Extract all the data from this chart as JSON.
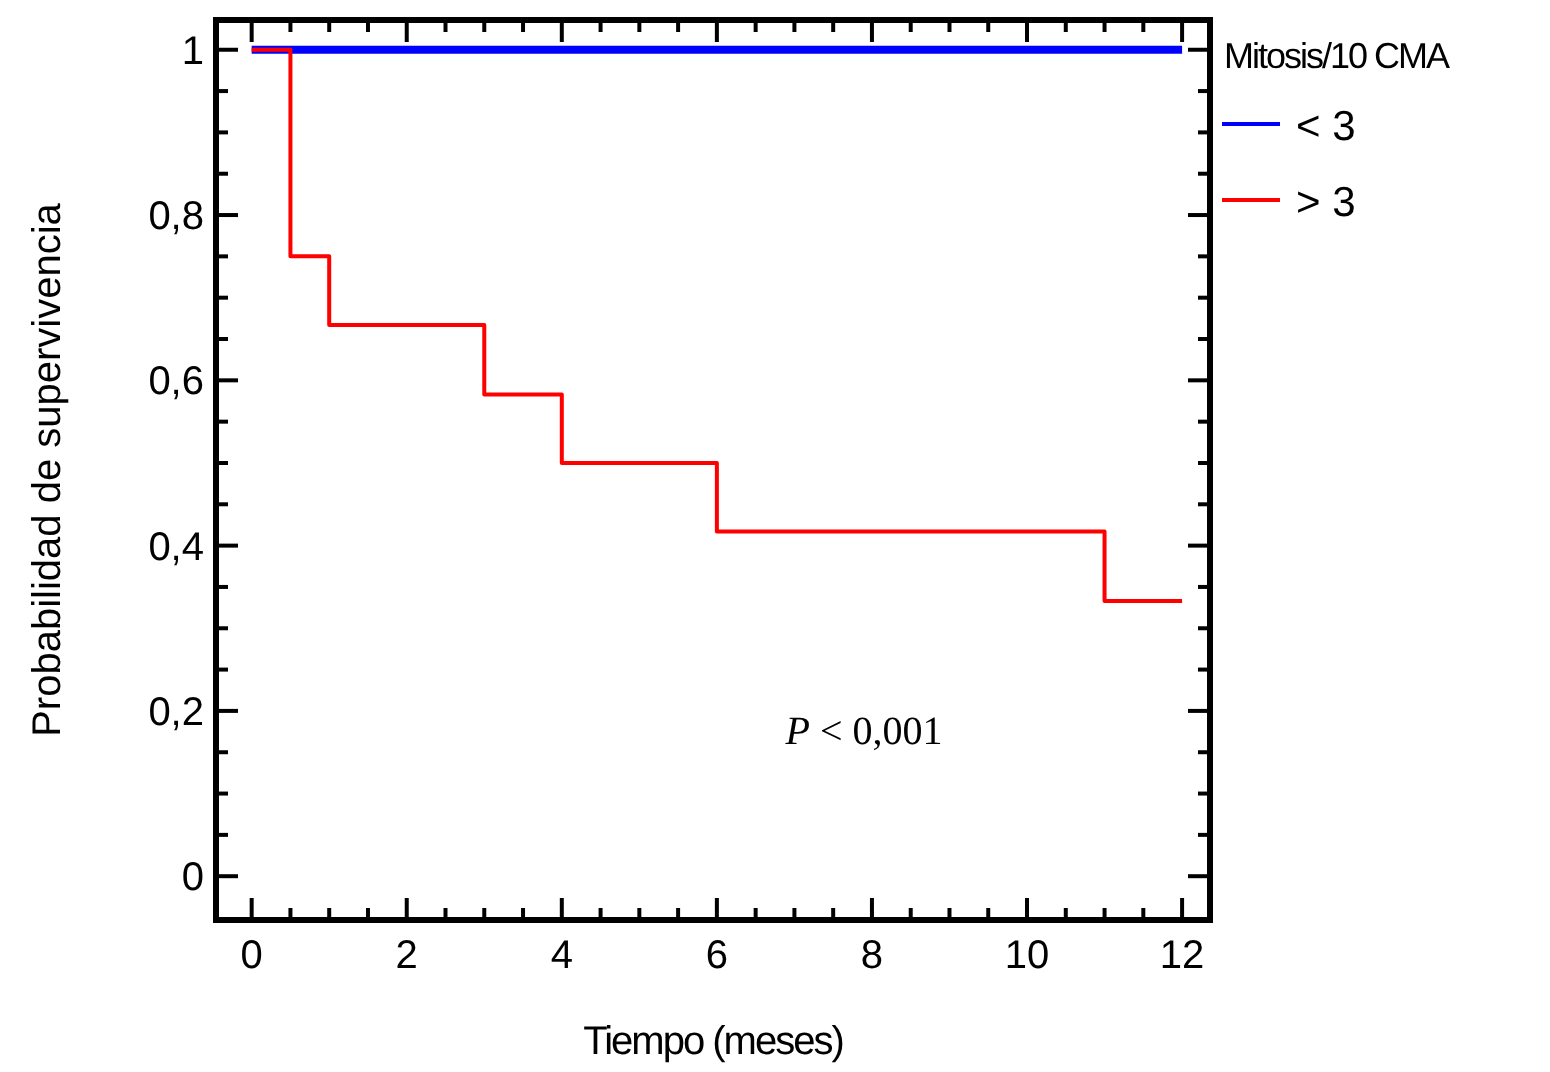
{
  "chart_data": {
    "type": "step",
    "xlabel": "Tiempo (meses)",
    "ylabel": "Probabilidad de supervivencia",
    "legend_title": "Mitosis/10 CMA",
    "legend": "right",
    "xlim": [
      -0.46,
      12.36
    ],
    "ylim": [
      -0.053,
      1.036
    ],
    "xticks": [
      0,
      {
        "value": 0.5,
        "label": null
      },
      {
        "value": 1,
        "label": null
      },
      {
        "value": 1.5,
        "label": null
      },
      2,
      {
        "value": 2.5,
        "label": null
      },
      {
        "value": 3,
        "label": null
      },
      {
        "value": 3.5,
        "label": null
      },
      4,
      {
        "value": 4.5,
        "label": null
      },
      {
        "value": 5,
        "label": null
      },
      {
        "value": 5.5,
        "label": null
      },
      6,
      {
        "value": 6.5,
        "label": null
      },
      {
        "value": 7,
        "label": null
      },
      {
        "value": 7.5,
        "label": null
      },
      8,
      {
        "value": 8.5,
        "label": null
      },
      {
        "value": 9,
        "label": null
      },
      {
        "value": 9.5,
        "label": null
      },
      10,
      {
        "value": 10.5,
        "label": null
      },
      {
        "value": 11,
        "label": null
      },
      {
        "value": 11.5,
        "label": null
      },
      12
    ],
    "yticks": [
      0,
      {
        "value": 0.05,
        "label": null
      },
      {
        "value": 0.1,
        "label": null
      },
      {
        "value": 0.15,
        "label": null
      },
      {
        "value": 0.2,
        "label": "0,2"
      },
      {
        "value": 0.25,
        "label": null
      },
      {
        "value": 0.3,
        "label": null
      },
      {
        "value": 0.35,
        "label": null
      },
      {
        "value": 0.4,
        "label": "0,4"
      },
      {
        "value": 0.45,
        "label": null
      },
      {
        "value": 0.5,
        "label": null
      },
      {
        "value": 0.55,
        "label": null
      },
      {
        "value": 0.6,
        "label": "0,6"
      },
      {
        "value": 0.65,
        "label": null
      },
      {
        "value": 0.7,
        "label": null
      },
      {
        "value": 0.75,
        "label": null
      },
      {
        "value": 0.8,
        "label": "0,8"
      },
      {
        "value": 0.85,
        "label": null
      },
      {
        "value": 0.9,
        "label": null
      },
      {
        "value": 0.95,
        "label": null
      },
      1
    ],
    "series": [
      {
        "name": "< 3",
        "color": "#0000ff",
        "x": [
          0,
          12
        ],
        "values": [
          1,
          1
        ]
      },
      {
        "name": "> 3",
        "color": "#ff0000",
        "x": [
          0,
          0.5,
          1,
          3,
          4,
          6,
          11,
          12
        ],
        "values": [
          1,
          0.75,
          0.667,
          0.583,
          0.5,
          0.417,
          0.333,
          0.333
        ]
      }
    ],
    "annotations": [
      "P < 0,001"
    ]
  }
}
